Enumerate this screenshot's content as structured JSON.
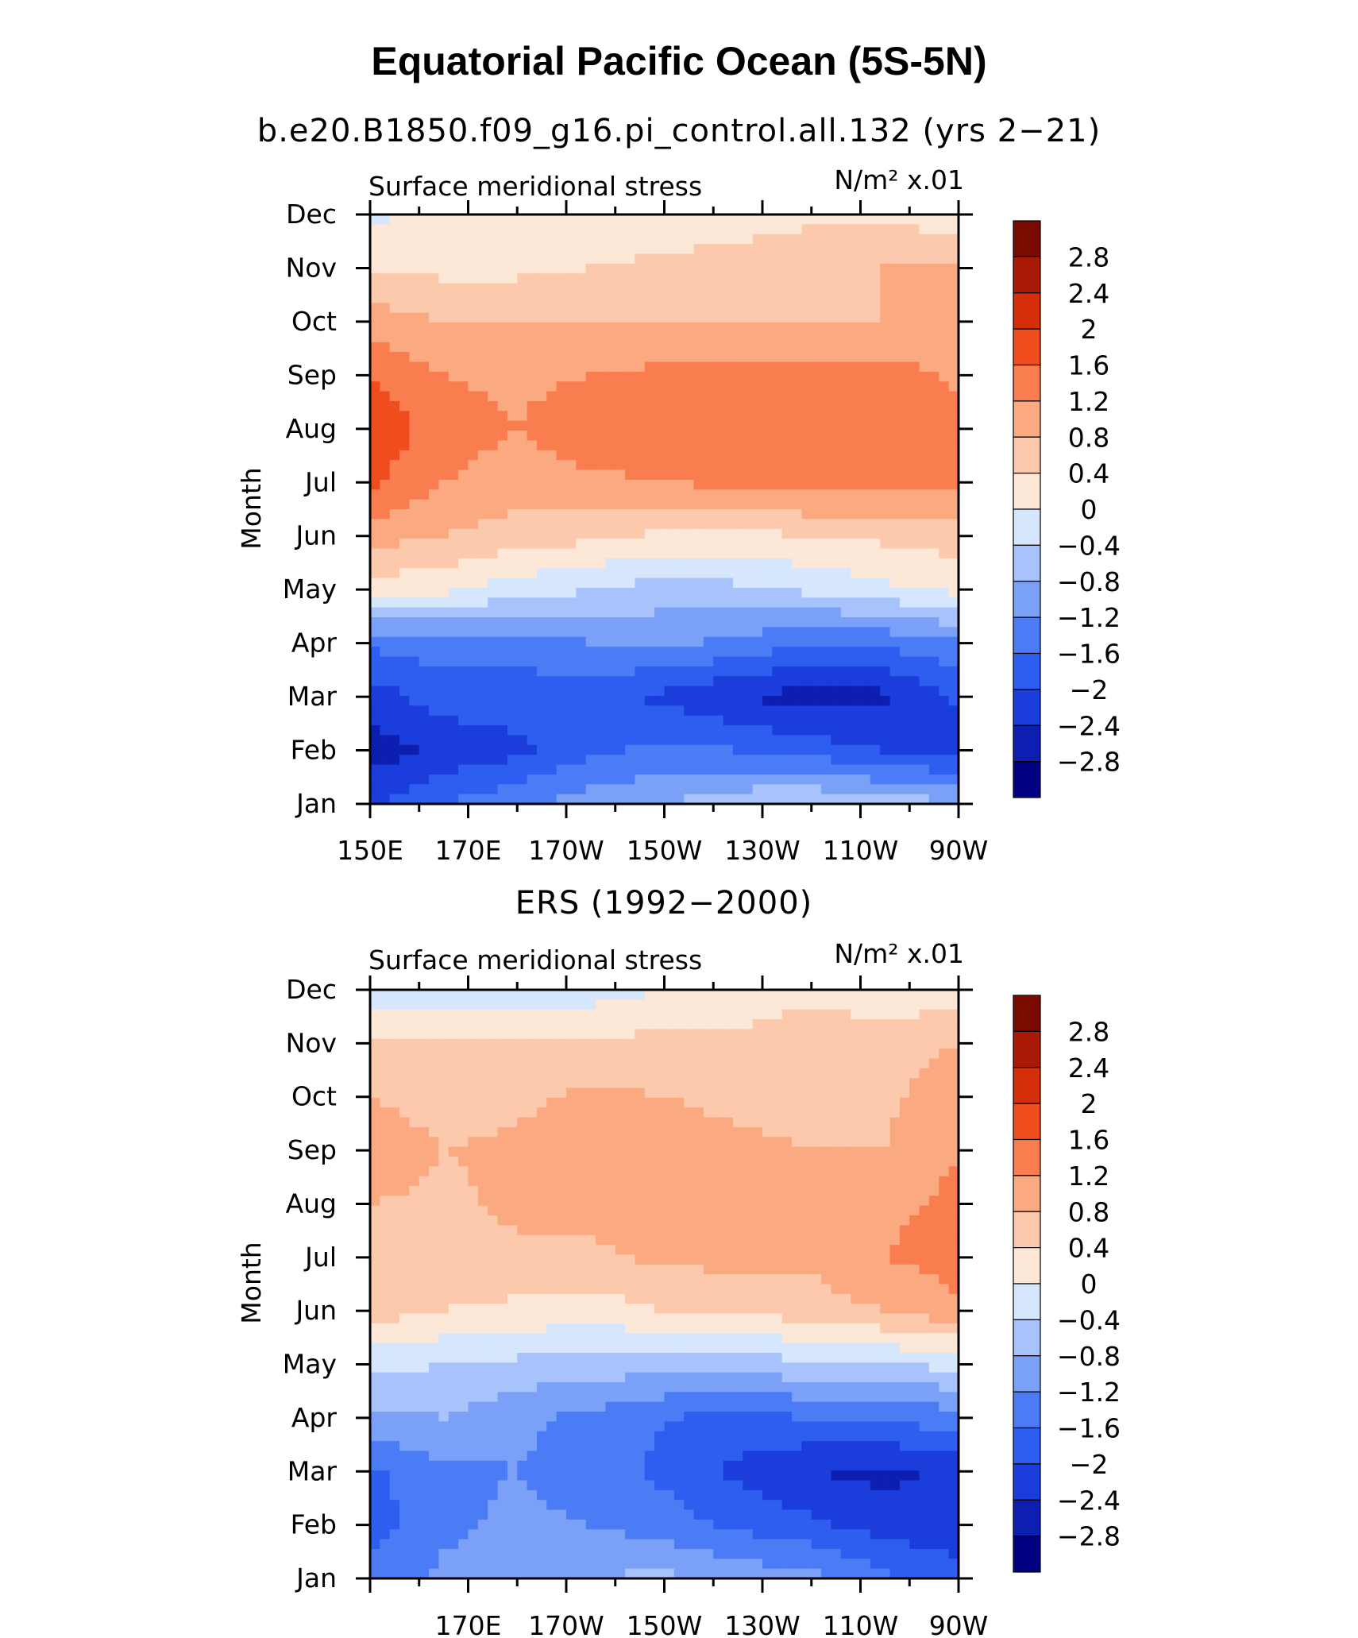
{
  "title": "Equatorial Pacific Ocean (5S-5N)",
  "colors": [
    "#000080",
    "#0d1fb0",
    "#1a3ddc",
    "#2e5ef0",
    "#4b7cf5",
    "#7aa0f8",
    "#a8c3fb",
    "#d5e6fd",
    "#fde8d8",
    "#fcc9ad",
    "#fba980",
    "#f97d4e",
    "#f04d1f",
    "#d52f0a",
    "#a81a05",
    "#7a0b00"
  ],
  "chart_data": [
    {
      "type": "heatmap",
      "subtitle": "b.e20.B1850.f09_g16.pi_control.all.132 (yrs 2−21)",
      "left_label": "Surface meridional stress",
      "units_label": "N/m² x.01",
      "ylabel": "Month",
      "xlabel": "",
      "x_tick_labels": [
        "150E",
        "170E",
        "170W",
        "150W",
        "130W",
        "110W",
        "90W"
      ],
      "y_tick_labels": [
        "Jan",
        "Feb",
        "Mar",
        "Apr",
        "May",
        "Jun",
        "Jul",
        "Aug",
        "Sep",
        "Oct",
        "Nov",
        "Dec"
      ],
      "colorbar_labels": [
        "2.8",
        "2.4",
        "2",
        "1.6",
        "1.2",
        "0.8",
        "0.4",
        "0",
        "−0.4",
        "−0.8",
        "−1.2",
        "−1.6",
        "−2",
        "−2.4",
        "−2.8"
      ],
      "colorbar_levels": [
        -2.8,
        -2.4,
        -2.0,
        -1.6,
        -1.2,
        -0.8,
        -0.4,
        0,
        0.4,
        0.8,
        1.2,
        1.6,
        2.0,
        2.4,
        2.8
      ],
      "values": [
        [
          -2.1,
          -1.6,
          -1.3,
          -1.0,
          -0.8,
          -0.5,
          -0.4,
          -0.6,
          -0.7
        ],
        [
          -2.6,
          -2.3,
          -2.1,
          -1.7,
          -1.5,
          -1.6,
          -1.8,
          -2.0,
          -2.2
        ],
        [
          -2.2,
          -1.8,
          -1.8,
          -1.9,
          -2.1,
          -2.4,
          -2.6,
          -2.5,
          -1.9
        ],
        [
          -1.5,
          -1.4,
          -1.4,
          -1.2,
          -1.1,
          -1.3,
          -1.6,
          -1.5,
          -1.3
        ],
        [
          0.2,
          0.1,
          -0.2,
          -0.4,
          -0.6,
          -0.5,
          -0.3,
          -0.1,
          0.1
        ],
        [
          1.0,
          0.8,
          0.6,
          0.5,
          0.3,
          0.3,
          0.4,
          0.5,
          0.6
        ],
        [
          1.7,
          1.2,
          1.0,
          1.1,
          1.2,
          1.3,
          1.4,
          1.4,
          1.3
        ],
        [
          1.9,
          1.4,
          1.2,
          1.5,
          1.6,
          1.5,
          1.4,
          1.5,
          1.4
        ],
        [
          1.6,
          1.2,
          1.1,
          1.2,
          1.3,
          1.3,
          1.3,
          1.4,
          1.1
        ],
        [
          1.0,
          0.8,
          0.8,
          0.8,
          0.8,
          0.8,
          0.8,
          0.8,
          0.8
        ],
        [
          0.4,
          0.3,
          0.3,
          0.4,
          0.5,
          0.6,
          0.7,
          0.8,
          0.8
        ],
        [
          -0.1,
          0.1,
          0.2,
          0.1,
          0.1,
          0.2,
          0.3,
          0.3,
          0.2
        ]
      ]
    },
    {
      "type": "heatmap",
      "subtitle": "ERS (1992−2000)",
      "left_label": "Surface meridional stress",
      "units_label": "N/m² x.01",
      "ylabel": "Month",
      "xlabel": "",
      "x_tick_labels": [
        "170E",
        "170W",
        "150W",
        "130W",
        "110W",
        "90W"
      ],
      "y_tick_labels": [
        "Jan",
        "Feb",
        "Mar",
        "Apr",
        "May",
        "Jun",
        "Jul",
        "Aug",
        "Sep",
        "Oct",
        "Nov",
        "Dec"
      ],
      "colorbar_labels": [
        "2.8",
        "2.4",
        "2",
        "1.6",
        "1.2",
        "0.8",
        "0.4",
        "0",
        "−0.4",
        "−0.8",
        "−1.2",
        "−1.6",
        "−2",
        "−2.4",
        "−2.8"
      ],
      "colorbar_levels": [
        -2.8,
        -2.4,
        -2.0,
        -1.6,
        -1.2,
        -0.8,
        -0.4,
        0,
        0.4,
        0.8,
        1.2,
        1.6,
        2.0,
        2.4,
        2.8
      ],
      "values": [
        [
          -1.4,
          -1.1,
          -0.9,
          -0.8,
          -0.7,
          -0.9,
          -1.1,
          -1.5,
          -1.9
        ],
        [
          -1.8,
          -1.3,
          -1.1,
          -1.2,
          -1.4,
          -1.7,
          -1.9,
          -2.2,
          -2.2
        ],
        [
          -1.7,
          -1.3,
          -1.2,
          -1.4,
          -1.7,
          -2.1,
          -2.4,
          -2.5,
          -2.3
        ],
        [
          -0.9,
          -0.8,
          -1.1,
          -1.3,
          -1.6,
          -1.7,
          -1.6,
          -1.5,
          -1.4
        ],
        [
          -0.3,
          -0.4,
          -0.5,
          -0.6,
          -0.6,
          -0.6,
          -0.5,
          -0.4,
          -0.3
        ],
        [
          0.6,
          0.4,
          0.3,
          0.2,
          0.4,
          0.5,
          0.6,
          0.8,
          1.1
        ],
        [
          0.7,
          0.6,
          0.7,
          0.7,
          0.9,
          0.9,
          0.9,
          1.2,
          1.4
        ],
        [
          0.8,
          0.7,
          0.9,
          1.0,
          1.0,
          0.9,
          0.8,
          1.1,
          1.3
        ],
        [
          1.1,
          0.8,
          0.9,
          1.0,
          1.0,
          0.9,
          0.8,
          0.8,
          1.2
        ],
        [
          0.8,
          0.6,
          0.7,
          0.9,
          0.8,
          0.7,
          0.6,
          0.7,
          1.1
        ],
        [
          0.4,
          0.4,
          0.4,
          0.5,
          0.5,
          0.5,
          0.7,
          0.6,
          0.8
        ],
        [
          -0.2,
          -0.3,
          -0.2,
          -0.2,
          0.0,
          0.1,
          0.3,
          0.1,
          0.2
        ]
      ]
    }
  ]
}
